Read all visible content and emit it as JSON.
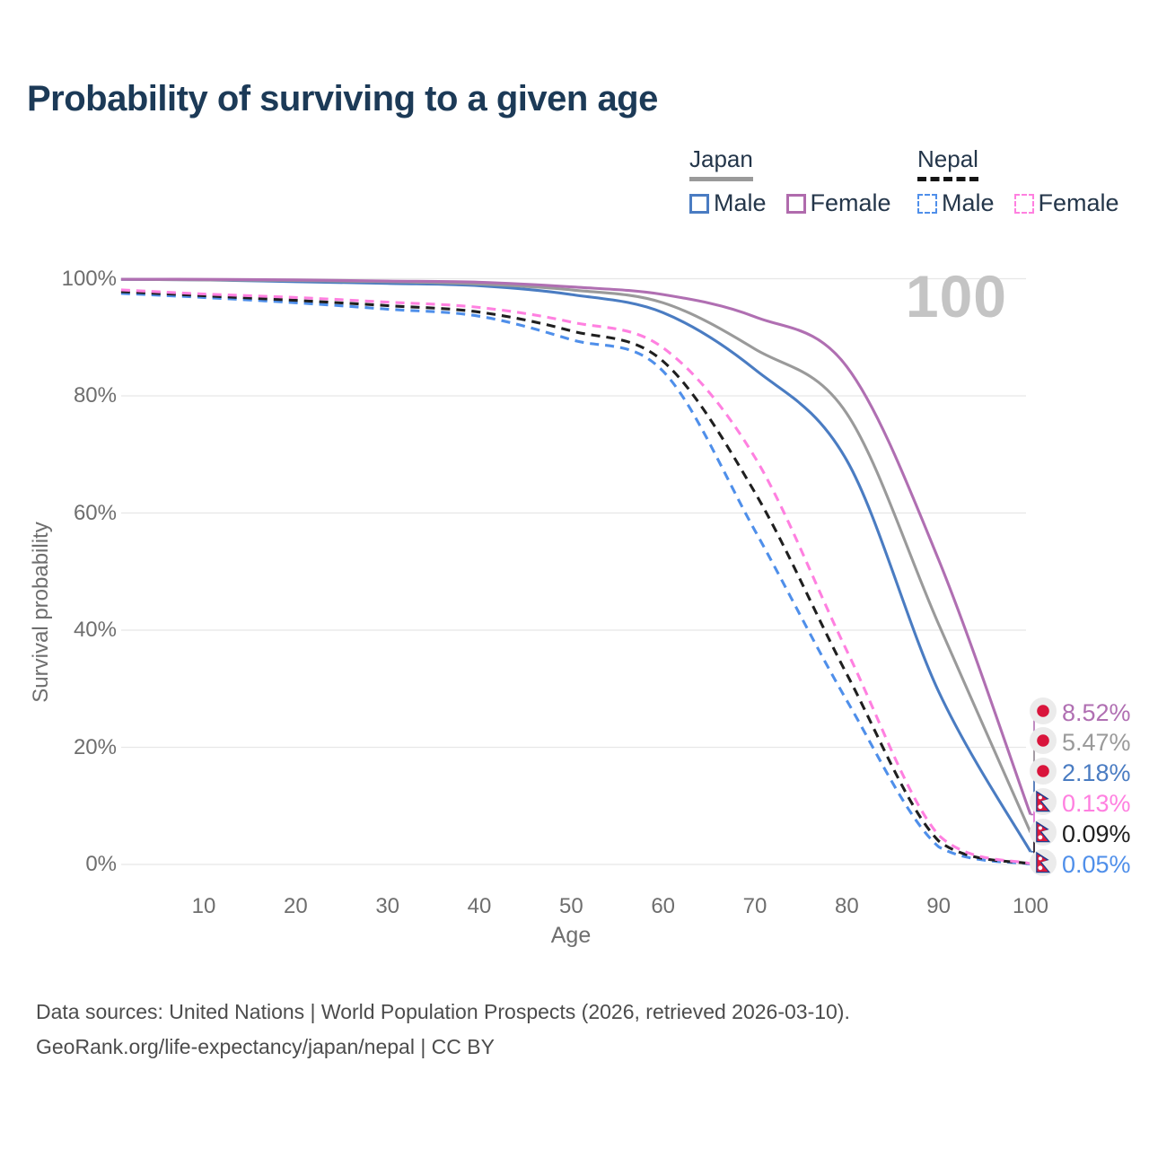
{
  "title": "Probability of surviving to a given age",
  "watermark": "100",
  "legend": {
    "groups": [
      {
        "country": "Japan",
        "line_style": "solid",
        "underline_color": "#9a9a9a",
        "items": [
          {
            "label": "Male",
            "color": "#4a7cc2"
          },
          {
            "label": "Female",
            "color": "#b06bad"
          }
        ]
      },
      {
        "country": "Nepal",
        "line_style": "dashed",
        "underline_color": "#141414",
        "items": [
          {
            "label": "Male",
            "color": "#4f8fea"
          },
          {
            "label": "Female",
            "color": "#ff80e0"
          }
        ]
      }
    ]
  },
  "axes": {
    "y_label": "Survival probability",
    "x_label": "Age",
    "y_ticks": [
      {
        "pct": 0,
        "label": "0%"
      },
      {
        "pct": 20,
        "label": "20%"
      },
      {
        "pct": 40,
        "label": "40%"
      },
      {
        "pct": 60,
        "label": "60%"
      },
      {
        "pct": 80,
        "label": "80%"
      },
      {
        "pct": 100,
        "label": "100%"
      }
    ],
    "x_ticks": [
      {
        "age": 10,
        "label": "10"
      },
      {
        "age": 20,
        "label": "20"
      },
      {
        "age": 30,
        "label": "30"
      },
      {
        "age": 40,
        "label": "40"
      },
      {
        "age": 50,
        "label": "50"
      },
      {
        "age": 60,
        "label": "60"
      },
      {
        "age": 70,
        "label": "70"
      },
      {
        "age": 80,
        "label": "80"
      },
      {
        "age": 90,
        "label": "90"
      },
      {
        "age": 100,
        "label": "100"
      }
    ]
  },
  "chart_data": {
    "type": "line",
    "title": "Probability of surviving to a given age",
    "xlabel": "Age",
    "ylabel": "Survival probability",
    "xlim": [
      0,
      100
    ],
    "ylim": [
      0,
      100
    ],
    "grid": true,
    "legend_position": "top-right",
    "x": [
      1,
      10,
      20,
      30,
      40,
      50,
      60,
      70,
      80,
      90,
      100
    ],
    "series": [
      {
        "name": "Japan Female",
        "country": "Japan",
        "sex": "Female",
        "style": "solid",
        "color": "#b06fb2",
        "end_value_pct": 8.52,
        "end_label": "8.52%",
        "values": [
          99.9,
          99.9,
          99.8,
          99.6,
          99.4,
          98.6,
          97.3,
          93.5,
          85.0,
          52.0,
          8.52
        ]
      },
      {
        "name": "Japan Both sexes",
        "country": "Japan",
        "sex": "Both",
        "style": "solid",
        "color": "#9a9a9a",
        "end_value_pct": 5.47,
        "end_label": "5.47%",
        "values": [
          99.9,
          99.8,
          99.7,
          99.5,
          99.1,
          98.1,
          95.9,
          88.0,
          77.0,
          41.0,
          5.47
        ]
      },
      {
        "name": "Japan Male",
        "country": "Japan",
        "sex": "Male",
        "style": "solid",
        "color": "#4a7cc2",
        "end_value_pct": 2.18,
        "end_label": "2.18%",
        "values": [
          99.9,
          99.8,
          99.5,
          99.2,
          98.8,
          97.3,
          94.2,
          84.5,
          69.0,
          29.5,
          2.18
        ]
      },
      {
        "name": "Nepal Female",
        "country": "Nepal",
        "sex": "Female",
        "style": "dashed",
        "color": "#ff80e0",
        "end_value_pct": 0.13,
        "end_label": "0.13%",
        "values": [
          98.1,
          97.4,
          96.8,
          96.0,
          95.1,
          92.6,
          88.2,
          69.5,
          36.5,
          5.0,
          0.13
        ]
      },
      {
        "name": "Nepal Both sexes",
        "country": "Nepal",
        "sex": "Both",
        "style": "dashed",
        "color": "#1f1f1f",
        "end_value_pct": 0.09,
        "end_label": "0.09%",
        "values": [
          97.8,
          97.1,
          96.3,
          95.4,
          94.3,
          91.1,
          85.9,
          63.5,
          32.5,
          4.0,
          0.09
        ]
      },
      {
        "name": "Nepal Male",
        "country": "Nepal",
        "sex": "Male",
        "style": "dashed",
        "color": "#4f8fea",
        "end_value_pct": 0.05,
        "end_label": "0.05%",
        "values": [
          97.5,
          96.8,
          95.9,
          94.8,
          93.6,
          89.6,
          84.2,
          57.0,
          28.0,
          3.0,
          0.05
        ]
      }
    ]
  },
  "colors": {
    "title_text": "#1c3a57",
    "axis_text": "#6e6e6e",
    "gridline": "#e7e7e7",
    "watermark": "#c4c4c4",
    "footer_text": "#4c4c4c",
    "flag_bg_circle": "#ebebeb",
    "japan_flag_red": "#d9153c",
    "nepal_flag_crimson": "#dc1a3c",
    "nepal_flag_blue": "#1d3e8f"
  },
  "footer": {
    "line1": "Data sources: United Nations | World Population Prospects (2026, retrieved 2026-03-10).",
    "line2": "GeoRank.org/life-expectancy/japan/nepal | CC BY"
  }
}
